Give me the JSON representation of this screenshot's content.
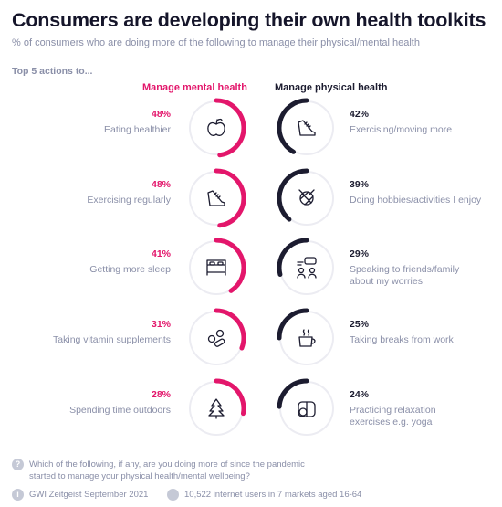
{
  "title": "Consumers are developing their own health toolkits",
  "subtitle": "% of consumers who are doing more of the following to manage their physical/mental health",
  "section_label": "Top 5 actions to...",
  "colors": {
    "mental": "#e3166b",
    "physical": "#1c1c30",
    "track": "#ececf2",
    "icon": "#1c1c30"
  },
  "chart_data": [
    {
      "type": "radial-bar",
      "title": "Manage mental health",
      "unit": "%",
      "categories": [
        "Eating healthier",
        "Exercising regularly",
        "Getting more sleep",
        "Taking vitamin supplements",
        "Spending time outdoors"
      ],
      "values": [
        48,
        48,
        41,
        31,
        28
      ],
      "labels": [
        "48%",
        "48%",
        "41%",
        "31%",
        "28%"
      ],
      "icons": [
        "apple-icon",
        "running-shoe-icon",
        "bed-icon",
        "pills-icon",
        "tree-icon"
      ]
    },
    {
      "type": "radial-bar",
      "title": "Manage physical health",
      "unit": "%",
      "categories": [
        "Exercising/moving more",
        "Doing hobbies/activities I enjoy",
        "Speaking to friends/family about my worries",
        "Taking breaks from work",
        "Practicing relaxation exercises e.g. yoga"
      ],
      "category_lines": [
        [
          "Exercising/moving more"
        ],
        [
          "Doing hobbies/activities I enjoy"
        ],
        [
          "Speaking to friends/family",
          "about my worries"
        ],
        [
          "Taking breaks from work"
        ],
        [
          "Practicing relaxation",
          "exercises e.g. yoga"
        ]
      ],
      "values": [
        42,
        39,
        29,
        25,
        24
      ],
      "labels": [
        "42%",
        "39%",
        "29%",
        "25%",
        "24%"
      ],
      "icons": [
        "running-shoe-icon",
        "yarn-icon",
        "chat-people-icon",
        "coffee-cup-icon",
        "yoga-mat-icon"
      ]
    }
  ],
  "footer": {
    "question_icon": "?",
    "question_lines": [
      "Which of the following, if any, are you doing more of since the pandemic",
      "started to manage your physical health/mental wellbeing?"
    ],
    "source_icon": "i",
    "source": "GWI Zeitgeist September 2021",
    "sample": "10,522 internet users in 7 markets aged 16-64"
  }
}
